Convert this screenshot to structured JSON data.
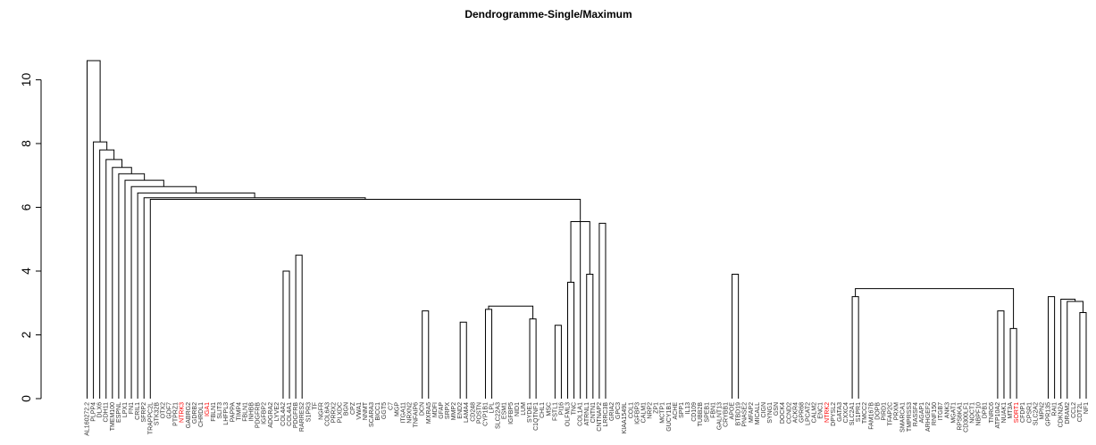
{
  "chart_data": {
    "type": "dendrogram",
    "title": "Dendrogramme-Single/Maximum",
    "xlabel": "",
    "ylabel": "",
    "ylim": [
      0,
      10.6
    ],
    "yticks": [
      0,
      2,
      4,
      6,
      8,
      10
    ],
    "grid": false,
    "highlight_color": "#ff0000",
    "line_color": "#000000",
    "leaves": [
      {
        "label": "AL160272.2"
      },
      {
        "label": "PLPP4"
      },
      {
        "label": "DLX6"
      },
      {
        "label": "CDH11"
      },
      {
        "label": "TMEM100"
      },
      {
        "label": "ESPNL"
      },
      {
        "label": "LPX1"
      },
      {
        "label": "FN1"
      },
      {
        "label": "CRIL1"
      },
      {
        "label": "SFRP2"
      },
      {
        "label": "TRAPPC2L"
      },
      {
        "label": "STK32B"
      },
      {
        "label": "OTX2"
      },
      {
        "label": "GDF7"
      },
      {
        "label": "PTPRZ1"
      },
      {
        "label": "NTRK3",
        "highlight": true
      },
      {
        "label": "GABRG2"
      },
      {
        "label": "GDRB2"
      },
      {
        "label": "CHRDL1"
      },
      {
        "label": "IGA1",
        "highlight": true
      },
      {
        "label": "FBLN1"
      },
      {
        "label": "SLIT3"
      },
      {
        "label": "LHFPL3"
      },
      {
        "label": "PAPPA"
      },
      {
        "label": "TIMP4"
      },
      {
        "label": "FBLN1"
      },
      {
        "label": "INHBB"
      },
      {
        "label": "PDGFRB"
      },
      {
        "label": "IGFBP2"
      },
      {
        "label": "ADGRA2"
      },
      {
        "label": "LYVE2"
      },
      {
        "label": "COL4A2"
      },
      {
        "label": "COL4A1"
      },
      {
        "label": "PDGFRB"
      },
      {
        "label": "RARRES2"
      },
      {
        "label": "S1PR3"
      },
      {
        "label": "TF"
      },
      {
        "label": "NGFR"
      },
      {
        "label": "COL6A3"
      },
      {
        "label": "PRRX2"
      },
      {
        "label": "PLXDC"
      },
      {
        "label": "BGN"
      },
      {
        "label": "CPZ"
      },
      {
        "label": "VWA1"
      },
      {
        "label": "NNMT"
      },
      {
        "label": "SCARA3"
      },
      {
        "label": "BICC1"
      },
      {
        "label": "GGT5"
      },
      {
        "label": "C7"
      },
      {
        "label": "MGP"
      },
      {
        "label": "ITGA11"
      },
      {
        "label": "NRXN2"
      },
      {
        "label": "TNFAIP6"
      },
      {
        "label": "DCN"
      },
      {
        "label": "MXRA5"
      },
      {
        "label": "MDFI"
      },
      {
        "label": "GFAP"
      },
      {
        "label": "SRPX"
      },
      {
        "label": "MMP2"
      },
      {
        "label": "END2"
      },
      {
        "label": "LAMA4"
      },
      {
        "label": "CD248"
      },
      {
        "label": "POSTN"
      },
      {
        "label": "CYP1B1"
      },
      {
        "label": "LPL"
      },
      {
        "label": "SLC22A3"
      },
      {
        "label": "ESM1"
      },
      {
        "label": "IGFBP5"
      },
      {
        "label": "NID1"
      },
      {
        "label": "LUM"
      },
      {
        "label": "SYDE1"
      },
      {
        "label": "C1QTNF1"
      },
      {
        "label": "CHL1"
      },
      {
        "label": "MSC"
      },
      {
        "label": "FSTL1"
      },
      {
        "label": "PI16"
      },
      {
        "label": "OLFML3"
      },
      {
        "label": "TNC"
      },
      {
        "label": "COL1A1"
      },
      {
        "label": "ATRNL1"
      },
      {
        "label": "CNTN1"
      },
      {
        "label": "CNTNAP2"
      },
      {
        "label": "LRRC3B"
      },
      {
        "label": "GRIA2"
      },
      {
        "label": "GPC3"
      },
      {
        "label": "KIAA1549L"
      },
      {
        "label": "COL1"
      },
      {
        "label": "IGFBP3"
      },
      {
        "label": "CALM1"
      },
      {
        "label": "NRP2"
      },
      {
        "label": "ZP1"
      },
      {
        "label": "MCTP1"
      },
      {
        "label": "GUCY1B1"
      },
      {
        "label": "ACHE"
      },
      {
        "label": "SPP1"
      },
      {
        "label": "IL13"
      },
      {
        "label": "CD109"
      },
      {
        "label": "TUBB2B"
      },
      {
        "label": "SPEB1"
      },
      {
        "label": "FBN1"
      },
      {
        "label": "GALNT13"
      },
      {
        "label": "CRYBB1"
      },
      {
        "label": "APOE"
      },
      {
        "label": "BTBD19"
      },
      {
        "label": "PNASE2"
      },
      {
        "label": "MFAP2"
      },
      {
        "label": "MICALL"
      },
      {
        "label": "CIGN"
      },
      {
        "label": "SYNG1"
      },
      {
        "label": "GSN"
      },
      {
        "label": "DOCK4"
      },
      {
        "label": "CCND2"
      },
      {
        "label": "ACKR4"
      },
      {
        "label": "GPR68"
      },
      {
        "label": "LPCAT2"
      },
      {
        "label": "CALM2"
      },
      {
        "label": "ENC1"
      },
      {
        "label": "NTRK2",
        "highlight": true
      },
      {
        "label": "DPYSL2"
      },
      {
        "label": "GATA3"
      },
      {
        "label": "CXXC4"
      },
      {
        "label": "SLC2A1"
      },
      {
        "label": "S1PR1"
      },
      {
        "label": "TMCC2"
      },
      {
        "label": "FAM167B"
      },
      {
        "label": "DOPB"
      },
      {
        "label": "PIRD1"
      },
      {
        "label": "TFAP2C"
      },
      {
        "label": "PRXM"
      },
      {
        "label": "SMARCA1"
      },
      {
        "label": "TMPRSS3"
      },
      {
        "label": "RASSF4"
      },
      {
        "label": "AGAP1"
      },
      {
        "label": "ARHGEF2"
      },
      {
        "label": "RNF150"
      },
      {
        "label": "ITGB7"
      },
      {
        "label": "ANK3"
      },
      {
        "label": "MGAT1"
      },
      {
        "label": "RPS6KA1"
      },
      {
        "label": "CD300LF1"
      },
      {
        "label": "NOCT1"
      },
      {
        "label": "NBPF10"
      },
      {
        "label": "DPB1"
      },
      {
        "label": "TNRC6"
      },
      {
        "label": "ATP10A2"
      },
      {
        "label": "NUAK1"
      },
      {
        "label": "MT3A"
      },
      {
        "label": "SORT1",
        "highlight": true
      },
      {
        "label": "CFDP1"
      },
      {
        "label": "CPSR1"
      },
      {
        "label": "SLC2A2"
      },
      {
        "label": "MPN2"
      },
      {
        "label": "GPR135"
      },
      {
        "label": "RAI1"
      },
      {
        "label": "CDKN2A"
      },
      {
        "label": "DRAM2"
      },
      {
        "label": "CCL2"
      },
      {
        "label": "CDT2L"
      },
      {
        "label": "NF1"
      }
    ],
    "merges": [
      [
        157,
        158,
        2.7
      ],
      [
        155,
        159,
        3.05
      ],
      [
        154,
        160,
        3.12
      ],
      [
        152,
        153,
        3.2
      ],
      [
        162,
        163,
        3.3
      ],
      [
        151,
        164,
        3.35
      ],
      [
        150,
        165,
        3.42
      ],
      [
        146,
        147,
        2.2
      ],
      [
        148,
        167,
        2.8
      ],
      [
        144,
        145,
        2.75
      ],
      [
        143,
        169,
        2.78
      ],
      [
        142,
        170,
        2.82
      ],
      [
        168,
        171,
        2.95
      ],
      [
        141,
        172,
        2.98
      ],
      [
        140,
        173,
        3.0
      ],
      [
        139,
        174,
        3.02
      ],
      [
        138,
        175,
        3.05
      ],
      [
        137,
        176,
        3.08
      ],
      [
        136,
        177,
        3.1
      ],
      [
        135,
        178,
        3.12
      ],
      [
        134,
        179,
        3.14
      ],
      [
        133,
        180,
        3.16
      ],
      [
        132,
        181,
        3.18
      ],
      [
        131,
        182,
        3.2
      ],
      [
        130,
        183,
        3.22
      ],
      [
        129,
        184,
        3.25
      ],
      [
        128,
        185,
        3.28
      ],
      [
        127,
        186,
        3.32
      ],
      [
        126,
        187,
        3.35
      ],
      [
        125,
        188,
        3.38
      ],
      [
        124,
        189,
        3.42
      ],
      [
        123,
        190,
        3.45
      ],
      [
        121,
        122,
        3.2
      ],
      [
        120,
        192,
        3.55
      ],
      [
        119,
        193,
        3.6
      ],
      [
        118,
        194,
        3.62
      ],
      [
        117,
        195,
        3.64
      ],
      [
        116,
        196,
        3.65
      ],
      [
        115,
        197,
        3.68
      ],
      [
        114,
        198,
        3.7
      ],
      [
        113,
        199,
        3.72
      ],
      [
        112,
        200,
        3.75
      ],
      [
        111,
        201,
        3.8
      ],
      [
        110,
        202,
        3.85
      ],
      [
        109,
        203,
        3.87
      ],
      [
        108,
        204,
        3.89
      ],
      [
        107,
        205,
        3.91
      ],
      [
        106,
        206,
        3.93
      ],
      [
        105,
        207,
        3.95
      ],
      [
        104,
        208,
        3.97
      ],
      [
        102,
        103,
        3.9
      ],
      [
        101,
        210,
        4.0
      ],
      [
        100,
        211,
        4.05
      ],
      [
        99,
        212,
        4.08
      ],
      [
        98,
        213,
        4.1
      ],
      [
        97,
        214,
        4.12
      ],
      [
        96,
        215,
        4.2
      ],
      [
        95,
        216,
        4.25
      ],
      [
        94,
        217,
        4.3
      ],
      [
        93,
        218,
        4.45
      ],
      [
        92,
        219,
        4.75
      ],
      [
        91,
        220,
        4.85
      ],
      [
        90,
        221,
        4.95
      ],
      [
        89,
        222,
        5.05
      ],
      [
        88,
        223,
        5.15
      ],
      [
        87,
        224,
        5.2
      ],
      [
        86,
        225,
        5.25
      ],
      [
        85,
        226,
        5.35
      ],
      [
        84,
        227,
        5.4
      ],
      [
        83,
        228,
        5.45
      ],
      [
        81,
        82,
        5.5
      ],
      [
        191,
        166,
        3.45
      ],
      [
        209,
        231,
        3.48
      ],
      [
        230,
        232,
        5.52
      ],
      [
        79,
        80,
        3.9
      ],
      [
        74,
        75,
        2.3
      ],
      [
        73,
        235,
        2.4
      ],
      [
        72,
        236,
        2.6
      ],
      [
        70,
        71,
        2.5
      ],
      [
        69,
        238,
        2.8
      ],
      [
        68,
        239,
        3.0
      ],
      [
        67,
        240,
        3.05
      ],
      [
        66,
        241,
        3.1
      ],
      [
        65,
        242,
        3.12
      ],
      [
        63,
        64,
        2.8
      ],
      [
        62,
        244,
        3.13
      ],
      [
        61,
        245,
        3.15
      ],
      [
        59,
        60,
        2.4
      ],
      [
        58,
        247,
        2.8
      ],
      [
        57,
        248,
        2.85
      ],
      [
        56,
        249,
        2.9
      ],
      [
        55,
        250,
        2.92
      ],
      [
        53,
        54,
        2.75
      ],
      [
        52,
        252,
        2.8
      ],
      [
        51,
        253,
        3.0
      ],
      [
        251,
        254,
        3.05
      ],
      [
        243,
        237,
        2.9
      ],
      [
        255,
        256,
        3.2
      ],
      [
        246,
        257,
        3.3
      ],
      [
        50,
        258,
        3.35
      ],
      [
        49,
        259,
        3.38
      ],
      [
        48,
        260,
        3.4
      ],
      [
        47,
        261,
        3.42
      ],
      [
        46,
        262,
        3.45
      ],
      [
        45,
        263,
        3.48
      ],
      [
        44,
        264,
        3.5
      ],
      [
        43,
        265,
        3.55
      ],
      [
        42,
        266,
        3.6
      ],
      [
        41,
        267,
        3.65
      ],
      [
        40,
        268,
        3.8
      ],
      [
        39,
        269,
        3.95
      ],
      [
        38,
        270,
        4.0
      ],
      [
        37,
        271,
        4.05
      ],
      [
        36,
        272,
        4.1
      ],
      [
        35,
        273,
        4.15
      ],
      [
        274,
        234,
        3.75
      ],
      [
        31,
        32,
        4.0
      ],
      [
        30,
        276,
        4.25
      ],
      [
        29,
        277,
        4.4
      ],
      [
        28,
        278,
        4.55
      ],
      [
        27,
        279,
        4.65
      ],
      [
        33,
        34,
        4.5
      ],
      [
        275,
        281,
        3.9
      ],
      [
        280,
        282,
        4.7
      ],
      [
        26,
        283,
        4.8
      ],
      [
        25,
        284,
        4.95
      ],
      [
        24,
        285,
        5.05
      ],
      [
        23,
        286,
        5.2
      ],
      [
        22,
        287,
        5.35
      ],
      [
        21,
        288,
        5.45
      ],
      [
        20,
        289,
        5.55
      ],
      [
        19,
        290,
        5.65
      ],
      [
        18,
        291,
        5.7
      ],
      [
        17,
        292,
        5.75
      ],
      [
        16,
        293,
        5.8
      ],
      [
        15,
        294,
        5.85
      ],
      [
        14,
        295,
        5.9
      ],
      [
        13,
        296,
        5.95
      ],
      [
        12,
        297,
        6.0
      ],
      [
        11,
        298,
        6.05
      ],
      [
        76,
        77,
        3.65
      ],
      [
        299,
        233,
        5.55
      ],
      [
        300,
        78,
        5.6
      ],
      [
        10,
        301,
        6.25
      ],
      [
        9,
        302,
        6.3
      ],
      [
        8,
        303,
        6.45
      ],
      [
        7,
        304,
        6.65
      ],
      [
        6,
        305,
        6.85
      ],
      [
        5,
        306,
        7.05
      ],
      [
        4,
        307,
        7.25
      ],
      [
        3,
        308,
        7.5
      ],
      [
        2,
        309,
        7.8
      ],
      [
        1,
        310,
        8.05
      ],
      [
        0,
        311,
        10.6
      ]
    ]
  }
}
